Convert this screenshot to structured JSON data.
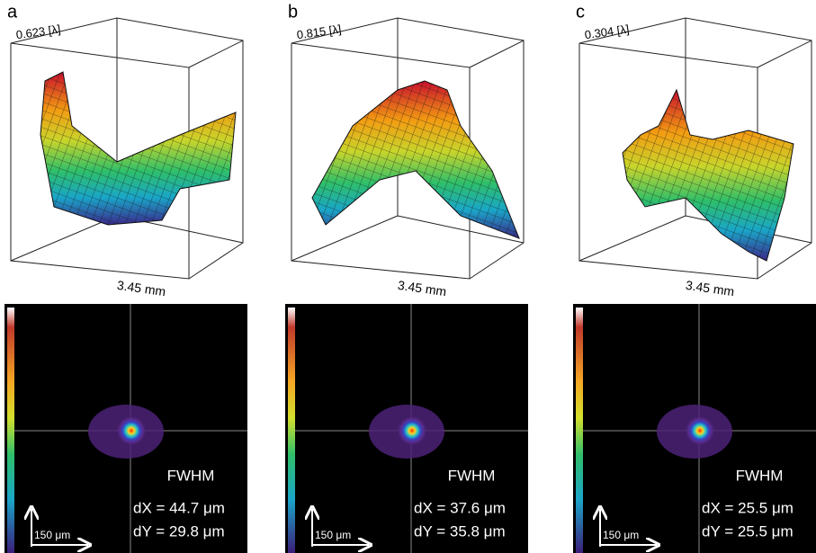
{
  "panels": [
    {
      "label": "a",
      "peak": "0.623 [λ]",
      "axis": "3.45 mm",
      "fwhm": "FWHM",
      "dx": "dX = 44.7 μm",
      "dy": "dY = 29.8 μm",
      "scale": "150 μm"
    },
    {
      "label": "b",
      "peak": "0.815 [λ]",
      "axis": "3.45 mm",
      "fwhm": "FWHM",
      "dx": "dX = 37.6 μm",
      "dy": "dY = 35.8 μm",
      "scale": "150 μm"
    },
    {
      "label": "c",
      "peak": "0.304 [λ]",
      "axis": "3.45 mm",
      "fwhm": "FWHM",
      "dx": "dX = 25.5 μm",
      "dy": "dY = 25.5 μm",
      "scale": "150 μm"
    }
  ]
}
